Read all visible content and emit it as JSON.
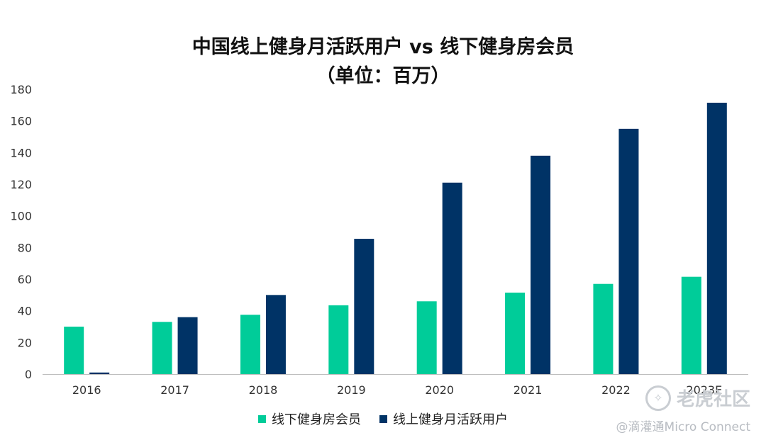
{
  "chart_data": {
    "type": "bar",
    "title": "中国线上健身月活跃用户 vs 线下健身房会员",
    "subtitle": "（单位：百万）",
    "xlabel": "",
    "ylabel": "",
    "categories": [
      "2016",
      "2017",
      "2018",
      "2019",
      "2020",
      "2021",
      "2022",
      "2023E"
    ],
    "series": [
      {
        "name": "线下健身房会员",
        "color": "#00cc99",
        "values": [
          30,
          33,
          37.5,
          43.5,
          46,
          51.5,
          57,
          61.5
        ]
      },
      {
        "name": "线上健身月活跃用户",
        "color": "#003366",
        "values": [
          1,
          36,
          50,
          85.5,
          121,
          138,
          155,
          171.5
        ]
      }
    ],
    "ylim": [
      0,
      180
    ],
    "yticks": [
      0,
      20,
      40,
      60,
      80,
      100,
      120,
      140,
      160,
      180
    ],
    "grid": false,
    "legend_position": "bottom"
  },
  "watermark": {
    "icon": "tiger-logo-icon",
    "text": "老虎社区"
  },
  "credit": "@滴灌通Micro Connect"
}
